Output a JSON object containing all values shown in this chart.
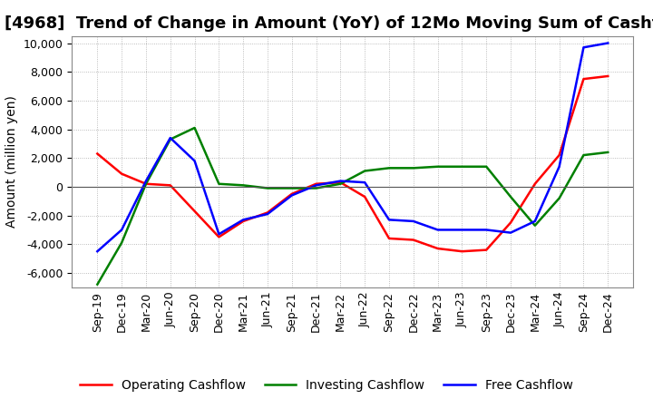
{
  "title": "[4968]  Trend of Change in Amount (YoY) of 12Mo Moving Sum of Cashflows",
  "ylabel": "Amount (million yen)",
  "ylim": [
    -7000,
    10500
  ],
  "yticks": [
    -6000,
    -4000,
    -2000,
    0,
    2000,
    4000,
    6000,
    8000,
    10000
  ],
  "x_labels": [
    "Sep-19",
    "Dec-19",
    "Mar-20",
    "Jun-20",
    "Sep-20",
    "Dec-20",
    "Mar-21",
    "Jun-21",
    "Sep-21",
    "Dec-21",
    "Mar-22",
    "Jun-22",
    "Sep-22",
    "Dec-22",
    "Mar-23",
    "Jun-23",
    "Sep-23",
    "Dec-23",
    "Mar-24",
    "Jun-24",
    "Sep-24",
    "Dec-24"
  ],
  "operating": [
    2300,
    900,
    200,
    100,
    -1700,
    -3500,
    -2400,
    -1800,
    -500,
    200,
    300,
    -700,
    -3600,
    -3700,
    -4300,
    -4500,
    -4400,
    -2500,
    200,
    2200,
    7500,
    7700
  ],
  "investing": [
    -6800,
    -3900,
    200,
    3300,
    4100,
    200,
    100,
    -100,
    -100,
    -100,
    200,
    1100,
    1300,
    1300,
    1400,
    1400,
    1400,
    -700,
    -2700,
    -800,
    2200,
    2400
  ],
  "free": [
    -4500,
    -3000,
    400,
    3400,
    1800,
    -3300,
    -2300,
    -1900,
    -600,
    100,
    400,
    300,
    -2300,
    -2400,
    -3000,
    -3000,
    -3000,
    -3200,
    -2400,
    1400,
    9700,
    10000
  ],
  "operating_color": "#ff0000",
  "investing_color": "#008000",
  "free_color": "#0000ff",
  "background_color": "#ffffff",
  "grid_color": "#aaaaaa",
  "title_fontsize": 13,
  "label_fontsize": 10,
  "tick_fontsize": 9
}
